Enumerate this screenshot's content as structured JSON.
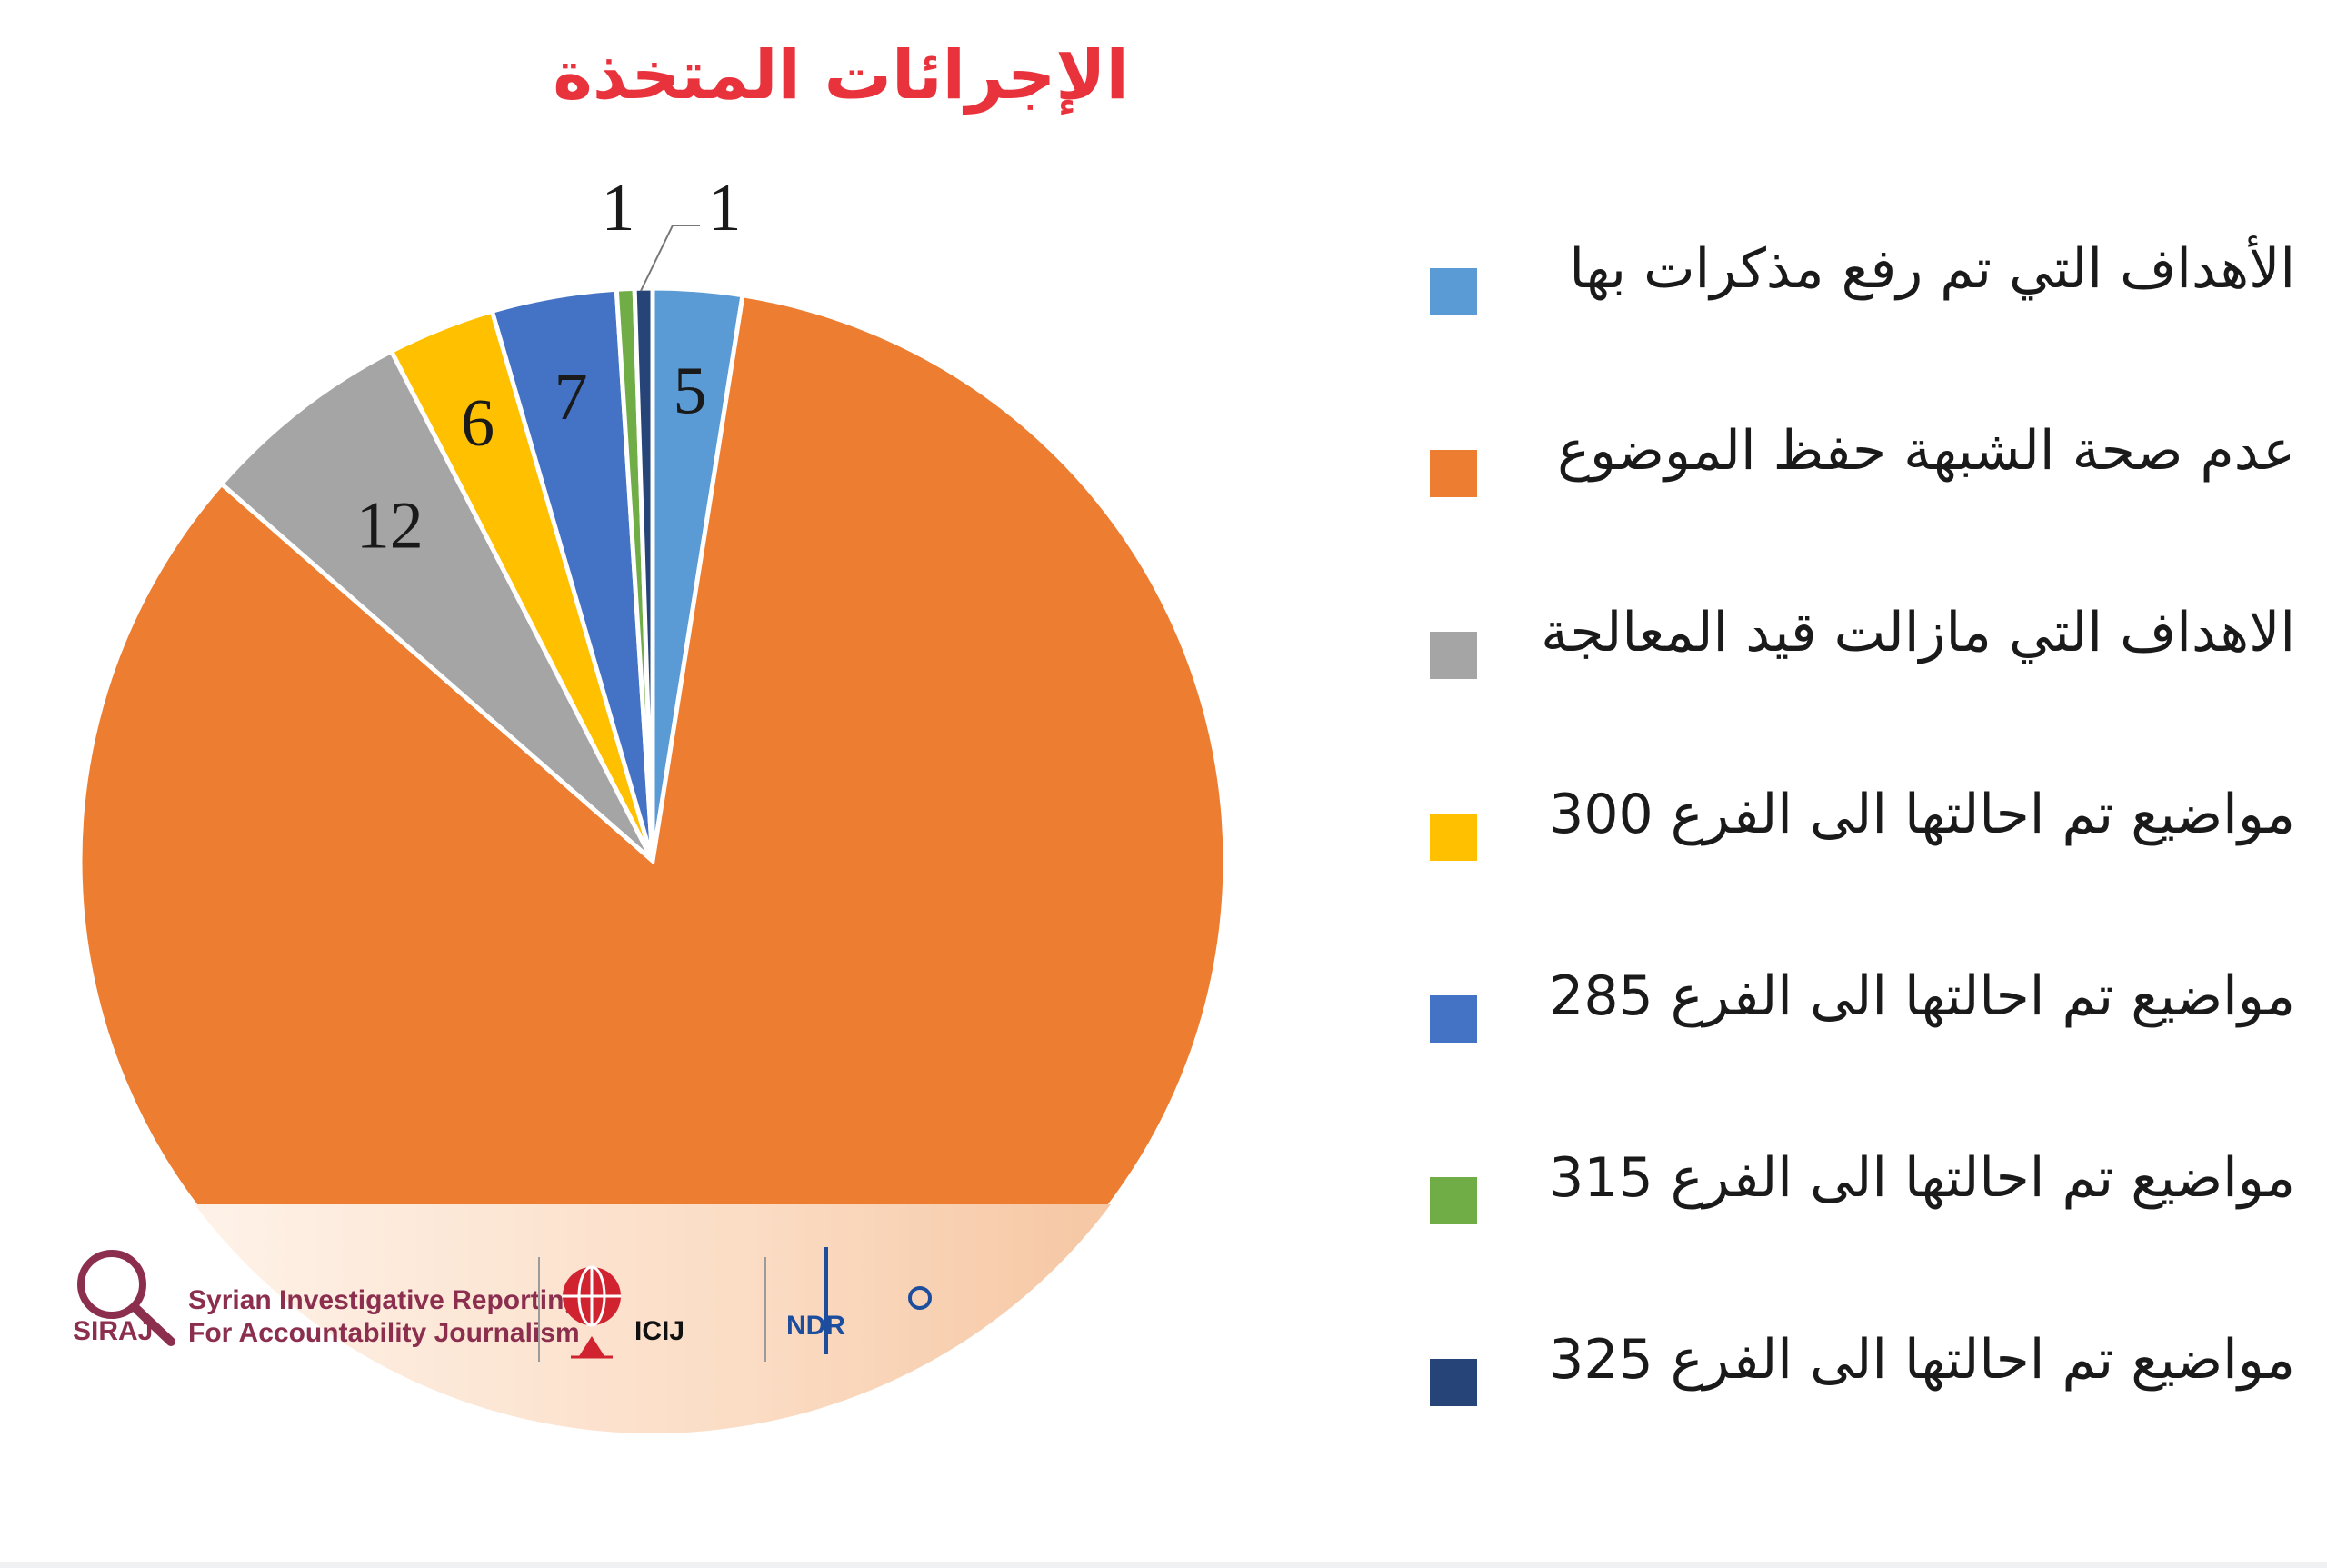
{
  "chart_data": {
    "type": "pie",
    "title": "الإجرائات المتخذة",
    "categories": [
      "الأهداف التي تم رفع مذكرات بها",
      "عدم صحة الشبهة حفظ الموضوع",
      "الاهداف التي مازالت قيد المعالجة",
      "مواضيع تم احالتها الى الفرع 300",
      "مواضيع تم احالتها الى الفرع 285",
      "مواضيع تم احالتها الى الفرع 315",
      "مواضيع تم احالتها الى الفرع 325"
    ],
    "values": [
      5,
      167,
      12,
      6,
      7,
      1,
      1
    ],
    "data_labels": [
      "5",
      "",
      "12",
      "6",
      "7",
      "1",
      "1"
    ],
    "colors": [
      "#5b9bd5",
      "#ed7d31",
      "#a5a5a5",
      "#ffc000",
      "#4472c4",
      "#70ad47",
      "#264478"
    ],
    "legend_position": "right"
  },
  "styles": {
    "title_color": "#e8323c"
  },
  "logos": {
    "siraj": {
      "name": "SIRAJ",
      "line1": "Syrian Investigative Reporting",
      "line2": "For Accountability Journalism"
    },
    "icij": {
      "name": "ICIJ"
    },
    "ndr": {
      "name": "NDR"
    }
  }
}
